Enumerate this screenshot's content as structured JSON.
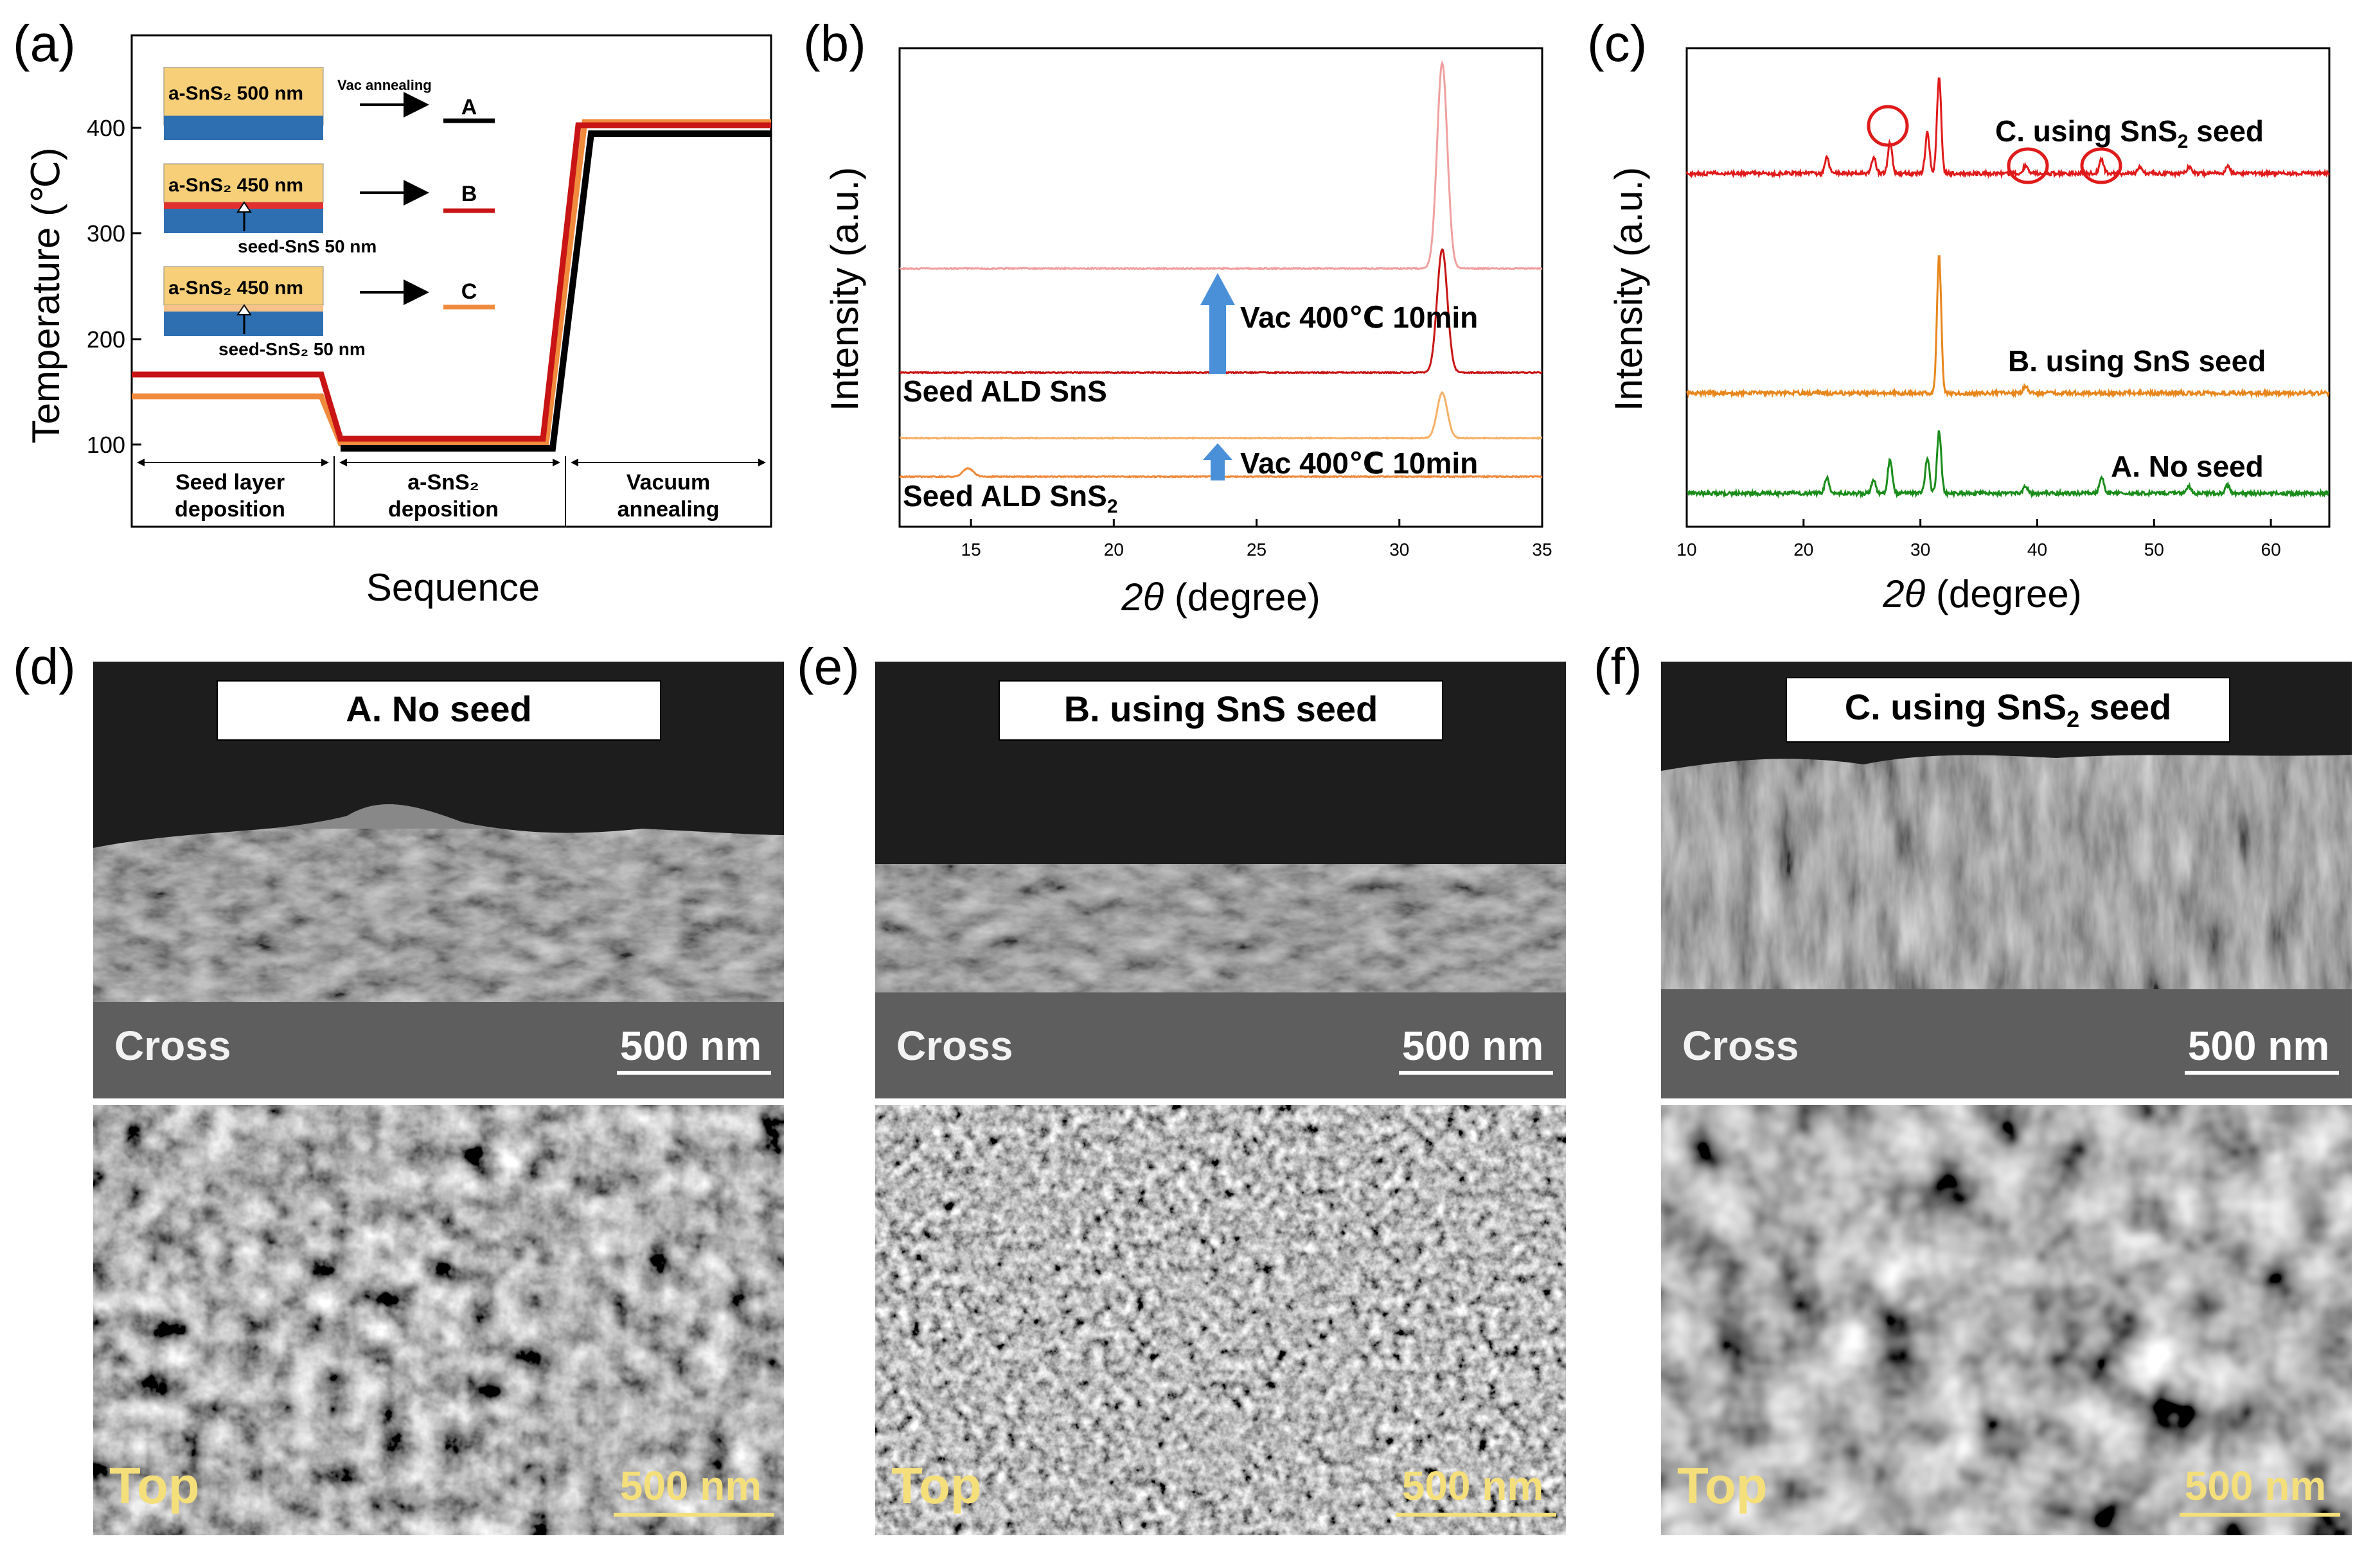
{
  "panel_a": {
    "panel_label": "(a)",
    "ylabel": "Temperature (℃)",
    "xlabel": "Sequence",
    "yticks": [
      "100",
      "200",
      "300",
      "400"
    ],
    "stage_labels": [
      [
        "Seed layer",
        "deposition"
      ],
      [
        "a-SnS₂",
        "deposition"
      ],
      [
        "Vacuum",
        "annealing"
      ]
    ],
    "inset": {
      "note": "Vac annealing",
      "rows": [
        {
          "film": "a-SnS₂ 500 nm",
          "seed": "",
          "letter": "A",
          "line_color": "#000000",
          "seed_color": ""
        },
        {
          "film": "a-SnS₂ 450 nm",
          "seed": "seed-SnS 50 nm",
          "letter": "B",
          "line_color": "#c81414",
          "seed_color": "#e23030"
        },
        {
          "film": "a-SnS₂ 450 nm",
          "seed": "seed-SnS₂ 50 nm",
          "letter": "C",
          "line_color": "#f08a3c",
          "seed_color": "#f5c28a"
        }
      ]
    },
    "colors": {
      "film": "#f6cf78",
      "substrate": "#2e6fb2",
      "A": "#000000",
      "B": "#c81414",
      "C": "#f08a3c"
    }
  },
  "panel_b": {
    "panel_label": "(b)",
    "ylabel": "Intensity (a.u.)",
    "xlabel": "2θ (degree)",
    "labels": {
      "seed_sns": "Seed ALD SnS",
      "seed_sns2": "Seed ALD SnS₂",
      "vac_top": "Vac 400℃ 10min",
      "vac_bottom": "Vac 400℃ 10min"
    }
  },
  "panel_c": {
    "panel_label": "(c)",
    "ylabel": "Intensity (a.u.)",
    "xlabel": "2θ (degree)",
    "labels": {
      "c": "C. using SnS₂ seed",
      "b": "B. using SnS seed",
      "a": "A. No seed"
    }
  },
  "chart_data": [
    {
      "type": "line",
      "panel": "b",
      "xlabel": "2θ (degree)",
      "ylabel": "Intensity (a.u.)",
      "xlim": [
        12.5,
        35
      ],
      "xticks": [
        15,
        20,
        25,
        30,
        35
      ],
      "grid": false,
      "series": [
        {
          "name": "",
          "color": "#f0a0a0",
          "peaks": [
            [
              31.5,
              1.0
            ]
          ]
        },
        {
          "name": "Seed ALD SnS",
          "color": "#c81414",
          "peaks": [
            [
              31.5,
              0.6
            ]
          ]
        },
        {
          "name": "",
          "color": "#f5b066",
          "peaks": [
            [
              31.5,
              0.22
            ]
          ]
        },
        {
          "name": "Seed ALD SnS₂",
          "color": "#f08a3c",
          "peaks": [
            [
              14.9,
              0.04
            ]
          ]
        }
      ]
    },
    {
      "type": "line",
      "panel": "c",
      "xlabel": "2θ (degree)",
      "ylabel": "Intensity (a.u.)",
      "xlim": [
        10,
        65
      ],
      "xticks": [
        10,
        20,
        30,
        40,
        50,
        60
      ],
      "grid": false,
      "series": [
        {
          "name": "C. using SnS₂ seed",
          "color": "#e01a1a",
          "peaks": [
            [
              22.0,
              0.12
            ],
            [
              26.0,
              0.12
            ],
            [
              27.4,
              0.22
            ],
            [
              30.6,
              0.3
            ],
            [
              31.6,
              0.7
            ],
            [
              39.0,
              0.06
            ],
            [
              45.5,
              0.1
            ],
            [
              48.8,
              0.05
            ],
            [
              53.0,
              0.05
            ],
            [
              56.3,
              0.06
            ]
          ]
        },
        {
          "name": "B. using SnS seed",
          "color": "#e8861c",
          "peaks": [
            [
              31.6,
              1.0
            ],
            [
              39.0,
              0.05
            ]
          ]
        },
        {
          "name": "A. No seed",
          "color": "#1a8c1a",
          "peaks": [
            [
              22.0,
              0.12
            ],
            [
              26.0,
              0.1
            ],
            [
              27.4,
              0.25
            ],
            [
              30.6,
              0.25
            ],
            [
              31.6,
              0.45
            ],
            [
              39.0,
              0.05
            ],
            [
              45.5,
              0.12
            ],
            [
              53.0,
              0.05
            ],
            [
              56.3,
              0.06
            ]
          ]
        }
      ]
    }
  ],
  "panel_d": {
    "panel_label": "(d)",
    "title": "A. No seed",
    "cross": "Cross",
    "top": "Top",
    "scale_cross": "500 nm",
    "scale_top": "500 nm"
  },
  "panel_e": {
    "panel_label": "(e)",
    "title": "B. using SnS seed",
    "cross": "Cross",
    "top": "Top",
    "scale_cross": "500 nm",
    "scale_top": "500 nm"
  },
  "panel_f": {
    "panel_label": "(f)",
    "title": "C. using SnS₂ seed",
    "cross": "Cross",
    "top": "Top",
    "scale_cross": "500 nm",
    "scale_top": "500 nm"
  }
}
